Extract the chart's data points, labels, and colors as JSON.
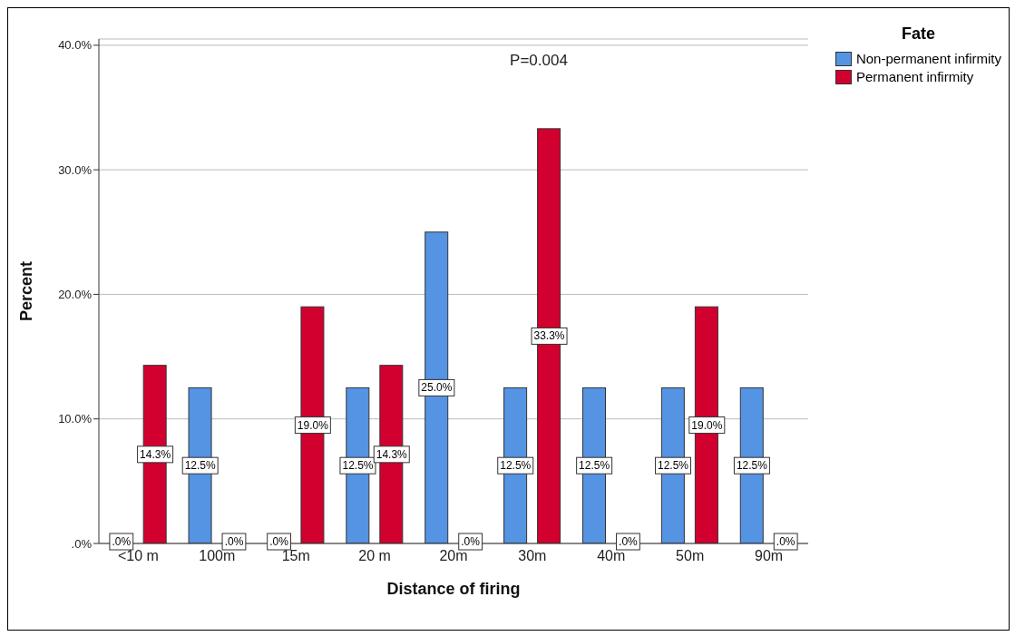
{
  "chart_data": {
    "type": "bar",
    "xlabel": "Distance of firing",
    "ylabel": "Percent",
    "legend_title": "Fate",
    "annotations": [
      "P=0.004"
    ],
    "categories": [
      "<10 m",
      "100m",
      "15m",
      "20 m",
      "20m",
      "30m",
      "40m",
      "50m",
      "90m"
    ],
    "series": [
      {
        "name": "Non-permanent infirmity",
        "color": "#5593e3",
        "values": [
          0,
          12.5,
          0,
          12.5,
          25.0,
          12.5,
          12.5,
          12.5,
          12.5
        ],
        "value_labels": [
          ".0%",
          "12.5%",
          ".0%",
          "12.5%",
          "25.0%",
          "12.5%",
          "12.5%",
          "12.5%",
          "12.5%"
        ]
      },
      {
        "name": "Permanent infirmity",
        "color": "#d2002f",
        "values": [
          14.3,
          0,
          19.0,
          14.3,
          0,
          33.3,
          0,
          19.0,
          0
        ],
        "value_labels": [
          "14.3%",
          ".0%",
          "19.0%",
          "14.3%",
          ".0%",
          "33.3%",
          ".0%",
          "19.0%",
          ".0%"
        ]
      }
    ],
    "ylim": [
      0,
      40.5
    ],
    "yticks": [
      {
        "value": 0,
        "label": ".0%"
      },
      {
        "value": 10,
        "label": "10.0%"
      },
      {
        "value": 20,
        "label": "20.0%"
      },
      {
        "value": 30,
        "label": "30.0%"
      },
      {
        "value": 40,
        "label": "40.0%"
      }
    ],
    "grid": "y",
    "legend": "top right"
  }
}
